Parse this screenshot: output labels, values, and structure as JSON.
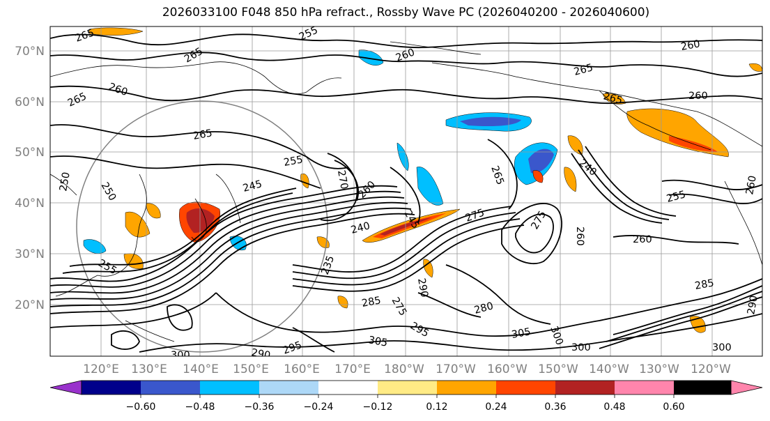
{
  "title": "2026033100 F048 850 hPa refract., Rossby Wave PC (2026040200 - 2026040600)",
  "lat_labels": [
    "70°N",
    "60°N",
    "50°N",
    "40°N",
    "30°N",
    "20°N"
  ],
  "lon_labels": [
    "120°E",
    "130°E",
    "140°E",
    "150°E",
    "160°E",
    "170°E",
    "180°W",
    "170°W",
    "160°W",
    "150°W",
    "140°W",
    "130°W",
    "120°W"
  ],
  "colorbar": {
    "ticks": [
      "−0.60",
      "−0.48",
      "−0.36",
      "−0.24",
      "−0.12",
      "0.12",
      "0.24",
      "0.36",
      "0.48",
      "0.60"
    ],
    "colors": [
      "#9932cc",
      "#00008b",
      "#3a57cc",
      "#00bfff",
      "#add8f7",
      "#ffffff",
      "#ffeb85",
      "#ffa500",
      "#ff4500",
      "#b22222",
      "#ff85ac"
    ]
  },
  "contour_labels": [
    "265",
    "255",
    "260",
    "265",
    "260",
    "265",
    "260",
    "265",
    "260",
    "265",
    "265",
    "255",
    "245",
    "250",
    "250",
    "240",
    "245",
    "260",
    "270",
    "275",
    "275",
    "265",
    "260",
    "260",
    "255",
    "240",
    "235",
    "285",
    "275",
    "290",
    "280",
    "295",
    "305",
    "300",
    "305",
    "300",
    "290",
    "295",
    "300",
    "300",
    "285",
    "290",
    "260",
    "255"
  ]
}
